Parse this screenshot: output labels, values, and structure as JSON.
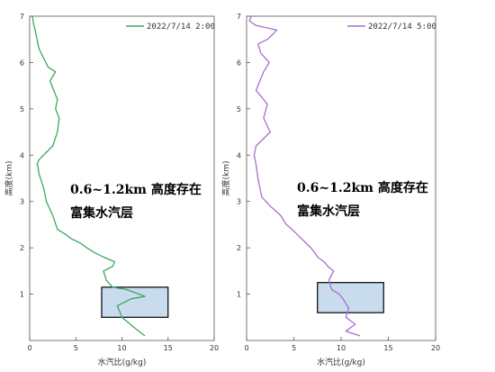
{
  "chart_data": [
    {
      "type": "line",
      "legend": "2022/7/14 2:00",
      "xlabel": "水汽比(g/kg)",
      "ylabel": "高度(km)",
      "xlim": [
        0,
        20
      ],
      "ylim": [
        0,
        7
      ],
      "xticks": [
        "0",
        "5",
        "10",
        "15",
        "20"
      ],
      "yticks": [
        "1",
        "2",
        "3",
        "4",
        "5",
        "6",
        "7"
      ],
      "annotation": [
        "0.6~1.2km 高度存在",
        "富集水汽层"
      ],
      "box": {
        "x": [
          7.8,
          15
        ],
        "y": [
          0.5,
          1.15
        ]
      },
      "series": [
        {
          "color": "#3aa860",
          "x": [
            12.5,
            11.5,
            10.0,
            9.5,
            11.0,
            12.5,
            10.5,
            9.0,
            8.3,
            8.0,
            9.0,
            9.2,
            8.0,
            7.0,
            6.2,
            5.5,
            4.5,
            3.8,
            3.0,
            2.5,
            1.8,
            1.5,
            1.0,
            0.9,
            0.8,
            1.0,
            2.5,
            3.0,
            3.2,
            2.8,
            3.0,
            2.6,
            2.2,
            2.8,
            2.0,
            1.5,
            1.0,
            0.8,
            0.6,
            0.4,
            0.3
          ],
          "y": [
            0.1,
            0.25,
            0.5,
            0.75,
            0.9,
            0.95,
            1.1,
            1.15,
            1.3,
            1.5,
            1.6,
            1.7,
            1.8,
            1.9,
            2.0,
            2.1,
            2.2,
            2.3,
            2.4,
            2.7,
            3.0,
            3.3,
            3.6,
            3.75,
            3.8,
            3.9,
            4.2,
            4.5,
            4.8,
            5.0,
            5.2,
            5.4,
            5.6,
            5.8,
            5.9,
            6.1,
            6.3,
            6.5,
            6.7,
            6.85,
            7.0
          ]
        }
      ]
    },
    {
      "type": "line",
      "legend": "2022/7/14 5:00",
      "xlabel": "水汽比(g/kg)",
      "ylabel": "高度(km)",
      "xlim": [
        0,
        20
      ],
      "ylim": [
        0,
        7
      ],
      "xticks": [
        "0",
        "5",
        "10",
        "15",
        "20"
      ],
      "yticks": [
        "1",
        "2",
        "3",
        "4",
        "5",
        "6",
        "7"
      ],
      "annotation": [
        "0.6~1.2km 高度存在",
        "富集水汽层"
      ],
      "box": {
        "x": [
          7.5,
          14.5
        ],
        "y": [
          0.6,
          1.25
        ]
      },
      "series": [
        {
          "color": "#a56fd1",
          "x": [
            12.0,
            10.5,
            11.5,
            10.5,
            10.8,
            10.2,
            9.8,
            9.0,
            8.7,
            9.2,
            8.6,
            8.2,
            7.5,
            7.2,
            6.8,
            6.3,
            5.8,
            5.3,
            4.8,
            4.2,
            3.6,
            2.5,
            1.6,
            1.2,
            1.0,
            0.8,
            1.0,
            2.5,
            1.8,
            2.2,
            1.0,
            1.8,
            2.4,
            1.5,
            1.2,
            2.2,
            2.7,
            3.2,
            1.0,
            0.3,
            0.5
          ],
          "y": [
            0.1,
            0.2,
            0.35,
            0.5,
            0.7,
            0.9,
            1.0,
            1.1,
            1.3,
            1.5,
            1.6,
            1.7,
            1.8,
            1.9,
            2.0,
            2.1,
            2.2,
            2.3,
            2.4,
            2.5,
            2.7,
            2.9,
            3.1,
            3.5,
            3.8,
            4.0,
            4.2,
            4.5,
            4.8,
            5.1,
            5.4,
            5.8,
            6.0,
            6.2,
            6.4,
            6.5,
            6.6,
            6.7,
            6.8,
            6.9,
            7.0
          ]
        }
      ]
    }
  ]
}
